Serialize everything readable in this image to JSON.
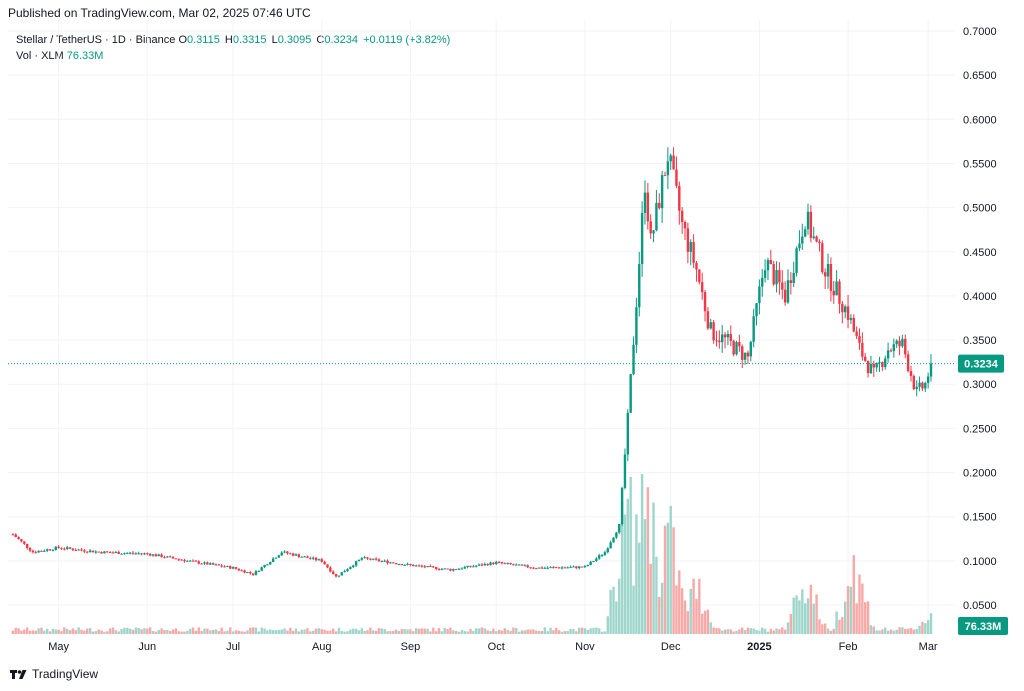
{
  "header": {
    "published": "Published on TradingView.com, Mar 02, 2025 07:46 UTC"
  },
  "legend": {
    "symbol": "Stellar / TetherUS · 1D · Binance",
    "open_label": "O",
    "open": "0.3115",
    "high_label": "H",
    "high": "0.3315",
    "low_label": "L",
    "low": "0.3095",
    "close_label": "C",
    "close": "0.3234",
    "change": "+0.0119 (+3.82%)",
    "vol_label": "Vol · XLM",
    "vol_value": "76.33M"
  },
  "footer": {
    "brand": "TradingView"
  },
  "colors": {
    "up": "#089981",
    "down": "#f23645",
    "vol_up": "#9fd6cc",
    "vol_down": "#f7a9a7",
    "grid": "#f0f3fa",
    "axis_text": "#131722"
  },
  "chart_data": {
    "type": "candlestick",
    "y_axis": {
      "ticks": [
        "0.7000",
        "0.6500",
        "0.6000",
        "0.5500",
        "0.5000",
        "0.4500",
        "0.4000",
        "0.3500",
        "0.3000",
        "0.2500",
        "0.2000",
        "0.1500",
        "0.1000",
        "0.0500"
      ],
      "range": [
        0.03,
        0.7
      ]
    },
    "x_axis": {
      "ticks": [
        "May",
        "Jun",
        "Jul",
        "Aug",
        "Sep",
        "Oct",
        "Nov",
        "Dec",
        "2025",
        "Feb",
        "Mar"
      ]
    },
    "last_price_label": "0.3234",
    "volume_label": "76.33M",
    "close_series": [
      {
        "date": "2024-04-15",
        "close": 0.13
      },
      {
        "date": "2024-04-22",
        "close": 0.11
      },
      {
        "date": "2024-05-01",
        "close": 0.115
      },
      {
        "date": "2024-05-15",
        "close": 0.11
      },
      {
        "date": "2024-06-01",
        "close": 0.108
      },
      {
        "date": "2024-06-15",
        "close": 0.1
      },
      {
        "date": "2024-07-01",
        "close": 0.092
      },
      {
        "date": "2024-07-08",
        "close": 0.085
      },
      {
        "date": "2024-07-18",
        "close": 0.11
      },
      {
        "date": "2024-08-01",
        "close": 0.1
      },
      {
        "date": "2024-08-06",
        "close": 0.082
      },
      {
        "date": "2024-08-15",
        "close": 0.103
      },
      {
        "date": "2024-09-01",
        "close": 0.095
      },
      {
        "date": "2024-09-15",
        "close": 0.09
      },
      {
        "date": "2024-10-01",
        "close": 0.098
      },
      {
        "date": "2024-10-15",
        "close": 0.092
      },
      {
        "date": "2024-11-01",
        "close": 0.093
      },
      {
        "date": "2024-11-08",
        "close": 0.11
      },
      {
        "date": "2024-11-13",
        "close": 0.14
      },
      {
        "date": "2024-11-16",
        "close": 0.26
      },
      {
        "date": "2024-11-18",
        "close": 0.35
      },
      {
        "date": "2024-11-22",
        "close": 0.53
      },
      {
        "date": "2024-11-24",
        "close": 0.46
      },
      {
        "date": "2024-11-30",
        "close": 0.56
      },
      {
        "date": "2024-12-05",
        "close": 0.48
      },
      {
        "date": "2024-12-10",
        "close": 0.43
      },
      {
        "date": "2024-12-15",
        "close": 0.36
      },
      {
        "date": "2024-12-20",
        "close": 0.35
      },
      {
        "date": "2024-12-28",
        "close": 0.33
      },
      {
        "date": "2025-01-03",
        "close": 0.44
      },
      {
        "date": "2025-01-10",
        "close": 0.4
      },
      {
        "date": "2025-01-17",
        "close": 0.49
      },
      {
        "date": "2025-01-24",
        "close": 0.43
      },
      {
        "date": "2025-02-01",
        "close": 0.38
      },
      {
        "date": "2025-02-05",
        "close": 0.34
      },
      {
        "date": "2025-02-10",
        "close": 0.31
      },
      {
        "date": "2025-02-15",
        "close": 0.34
      },
      {
        "date": "2025-02-20",
        "close": 0.345
      },
      {
        "date": "2025-02-25",
        "close": 0.29
      },
      {
        "date": "2025-02-28",
        "close": 0.3
      },
      {
        "date": "2025-03-02",
        "close": 0.3234
      }
    ],
    "volume_series": [
      {
        "date": "2024-11-16",
        "volume_million": 500
      },
      {
        "date": "2024-11-22",
        "volume_million": 640
      },
      {
        "date": "2024-11-30",
        "volume_million": 420
      },
      {
        "date": "2024-12-10",
        "volume_million": 190
      },
      {
        "date": "2025-01-17",
        "volume_million": 230
      },
      {
        "date": "2025-02-03",
        "volume_million": 270
      },
      {
        "date": "2025-03-02",
        "volume_million": 76.33
      }
    ]
  }
}
